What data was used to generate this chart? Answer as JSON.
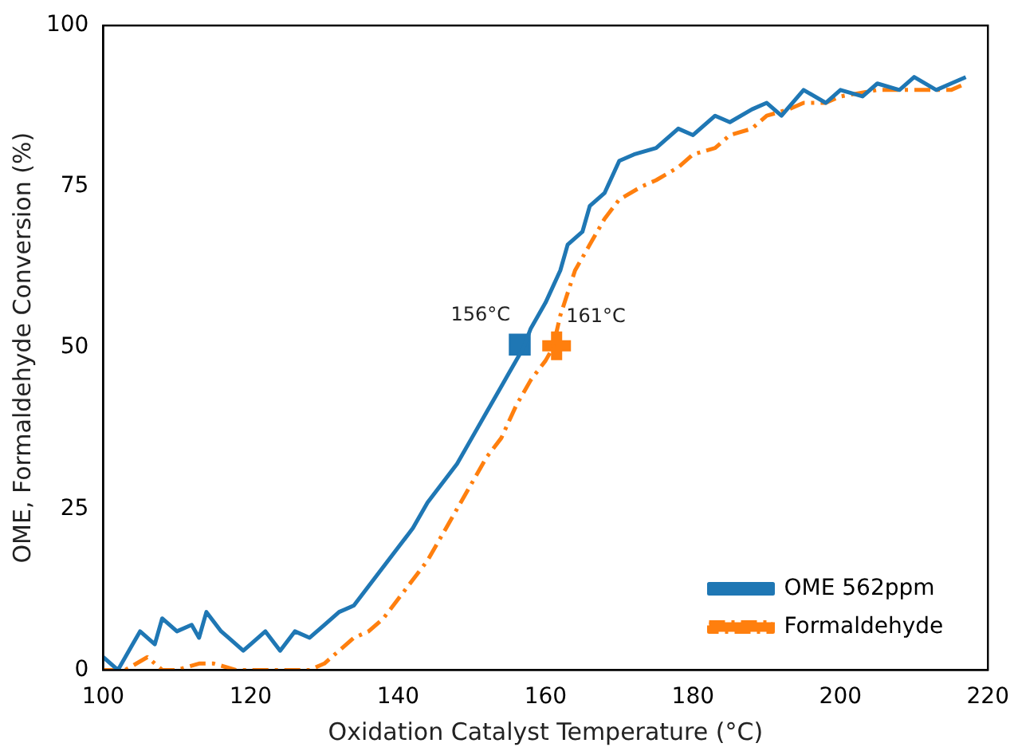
{
  "chart_data": {
    "type": "line",
    "xlabel": "Oxidation Catalyst Temperature (°C)",
    "ylabel": "OME, Formaldehyde Conversion (%)",
    "xlim": [
      100,
      220
    ],
    "xticks": [
      100,
      120,
      140,
      160,
      180,
      200,
      220
    ],
    "ylim": [
      0,
      100
    ],
    "yticks": [
      0,
      25,
      50,
      75,
      100
    ],
    "legend": "bottom right",
    "series": [
      {
        "name": "OME 562ppm",
        "color": "#1f77b4",
        "line_style": "solid",
        "marker": "none",
        "x": [
          100,
          102,
          104,
          105,
          107,
          108,
          110,
          112,
          113,
          114,
          116,
          117,
          119,
          120,
          122,
          124,
          126,
          128,
          130,
          132,
          134,
          136,
          138,
          140,
          142,
          144,
          146,
          148,
          150,
          152,
          154,
          155,
          157,
          158,
          160,
          162,
          163,
          165,
          166,
          168,
          170,
          172,
          175,
          178,
          180,
          183,
          185,
          188,
          190,
          192,
          195,
          198,
          200,
          203,
          205,
          208,
          210,
          213,
          215,
          217
        ],
        "values": [
          2,
          0,
          4,
          6,
          4,
          8,
          6,
          7,
          5,
          9,
          6,
          5,
          3,
          4,
          6,
          3,
          6,
          5,
          7,
          9,
          10,
          13,
          16,
          19,
          22,
          26,
          29,
          32,
          36,
          40,
          44,
          46,
          50,
          53,
          57,
          62,
          66,
          68,
          72,
          74,
          79,
          80,
          81,
          84,
          83,
          86,
          85,
          87,
          88,
          86,
          90,
          88,
          90,
          89,
          91,
          90,
          92,
          90,
          91,
          92
        ]
      },
      {
        "name": "Formaldehyde",
        "color": "#ff7f0e",
        "line_style": "dashed",
        "marker": "none",
        "x": [
          100,
          103,
          106,
          108,
          110,
          113,
          115,
          118,
          120,
          125,
          128,
          130,
          132,
          134,
          136,
          138,
          140,
          142,
          144,
          146,
          148,
          150,
          152,
          154,
          156,
          158,
          160,
          161,
          162,
          164,
          166,
          168,
          170,
          173,
          175,
          178,
          180,
          183,
          185,
          188,
          190,
          193,
          195,
          198,
          200,
          205,
          210,
          215,
          217
        ],
        "values": [
          0,
          0,
          2,
          0,
          0,
          1,
          1,
          0,
          0,
          0,
          0,
          1,
          3,
          5,
          6,
          8,
          11,
          14,
          17,
          21,
          25,
          29,
          33,
          36,
          41,
          45,
          48,
          50,
          55,
          62,
          66,
          70,
          73,
          75,
          76,
          78,
          80,
          81,
          83,
          84,
          86,
          87,
          88,
          88,
          89,
          90,
          90,
          90,
          91
        ]
      },
      {
        "type": "scatter",
        "color": "#1f77b4",
        "marker": "square",
        "x": [
          156.5
        ],
        "values": [
          50.5
        ]
      },
      {
        "type": "scatter",
        "color": "#ff7f0e",
        "marker": "cross",
        "x": [
          161.5
        ],
        "values": [
          50.3
        ]
      }
    ],
    "annotations": [
      {
        "text": "156°C",
        "x": 156.5,
        "y": 50.5
      },
      {
        "text": "161°C",
        "x": 161.5,
        "y": 50.3
      }
    ]
  }
}
